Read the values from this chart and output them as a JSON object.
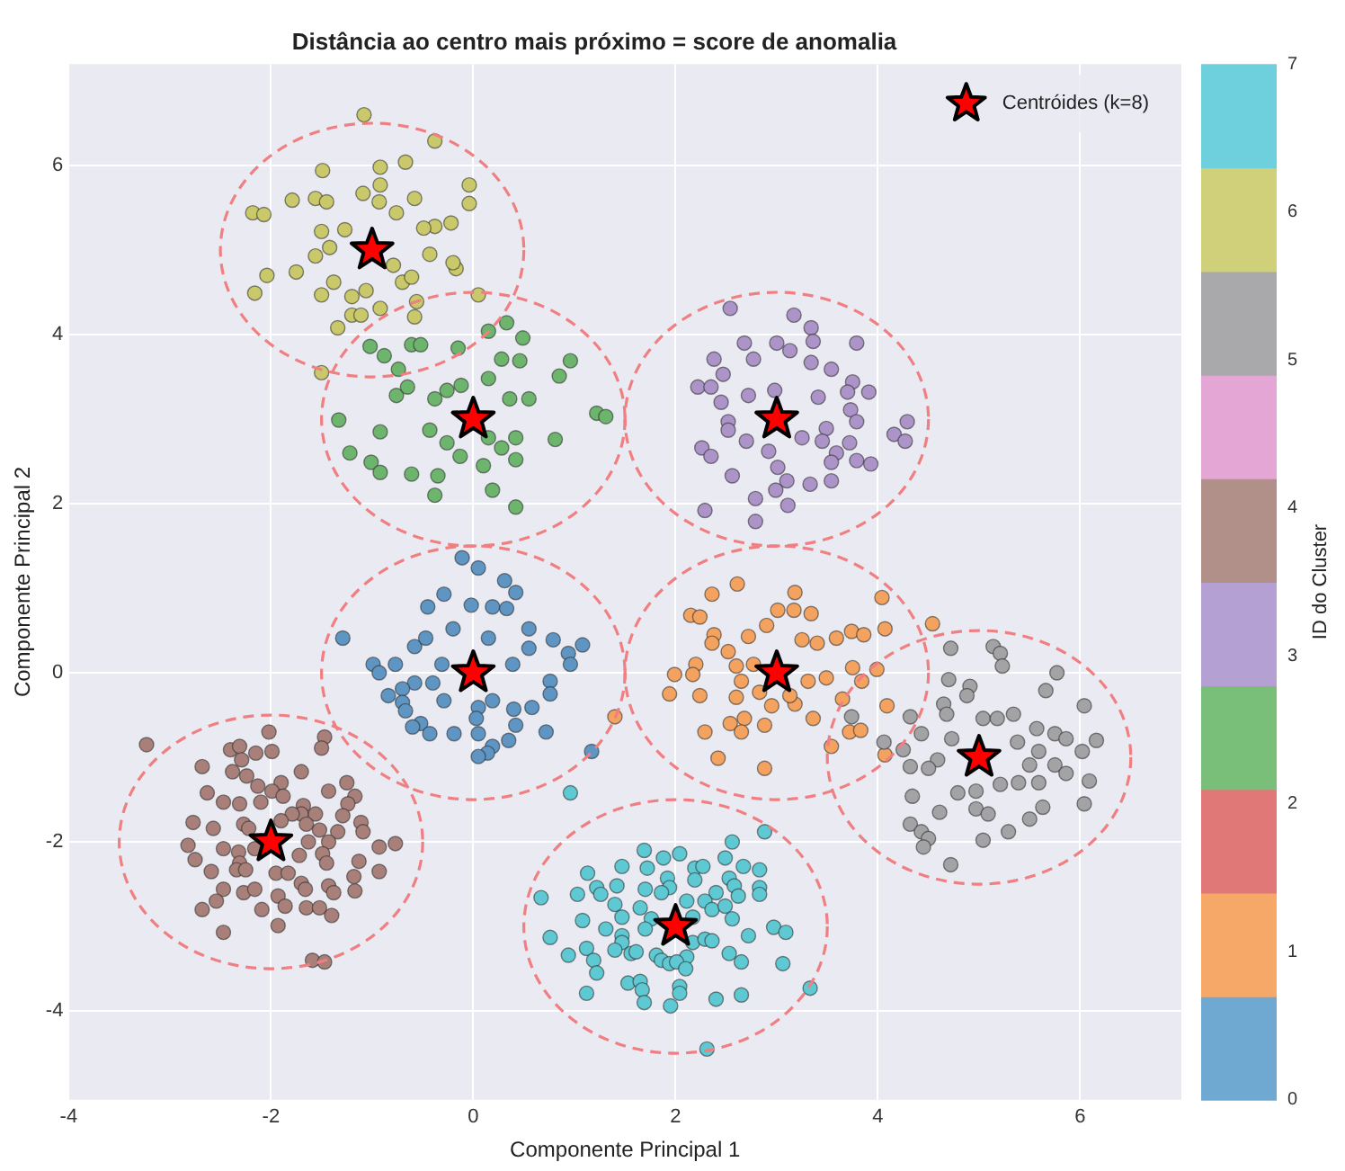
{
  "chart_data": {
    "type": "scatter",
    "title": "Distância ao centro mais próximo = score de anomalia",
    "xlabel": "Componente Principal 1",
    "ylabel": "Componente Principal 2",
    "clabel": "ID do Cluster",
    "clim": [
      0,
      7
    ],
    "cticks": [
      0,
      1,
      2,
      3,
      4,
      5,
      6,
      7
    ],
    "xlim": [
      -4,
      7
    ],
    "ylim": [
      -5.05,
      7.2
    ],
    "xticks": [
      -4,
      -2,
      0,
      2,
      4,
      6
    ],
    "yticks": [
      -4,
      -2,
      0,
      2,
      4,
      6
    ],
    "grid": true,
    "legend": "top right",
    "marker": "circle",
    "series": [
      {
        "color": "#5f95c2",
        "x": [
          -0.11,
          0.05,
          0.31,
          0.42,
          -0.29,
          -0.45,
          -0.02,
          0.19,
          0.33,
          0.55,
          0.79,
          1.08,
          0.94,
          0.96,
          -1.29,
          -0.99,
          -0.93,
          -0.77,
          -0.58,
          -0.47,
          -0.58,
          -0.7,
          -0.84,
          -0.7,
          -0.67,
          -0.4,
          -0.29,
          0.19,
          0.05,
          0.4,
          0.58,
          0.76,
          0.76,
          0.39,
          0.55,
          -0.52,
          -0.6,
          -0.43,
          -0.19,
          0.03,
          0.05,
          0.42,
          0.72,
          0.35,
          0.19,
          0.14,
          0.05,
          1.17,
          -0.2,
          0.15,
          -0.31
        ],
        "values": [
          1.36,
          1.24,
          1.09,
          0.95,
          0.93,
          0.78,
          0.8,
          0.78,
          0.76,
          0.52,
          0.39,
          0.33,
          0.23,
          0.1,
          0.41,
          0.1,
          0.0,
          0.1,
          0.31,
          0.41,
          -0.12,
          -0.19,
          -0.27,
          -0.35,
          -0.45,
          -0.12,
          -0.33,
          -0.33,
          -0.41,
          -0.43,
          -0.41,
          -0.1,
          -0.25,
          0.1,
          0.29,
          -0.6,
          -0.64,
          -0.72,
          -0.72,
          -0.54,
          -0.72,
          -0.62,
          -0.7,
          -0.8,
          -0.87,
          -0.95,
          -0.99,
          -0.93,
          0.52,
          0.41,
          0.1
        ]
      },
      {
        "color": "#f3a35f",
        "x": [
          2.61,
          2.36,
          3.18,
          3.17,
          3.34,
          3.01,
          2.15,
          2.24,
          4.04,
          4.54,
          4.07,
          2.38,
          2.72,
          2.9,
          3.25,
          3.4,
          3.59,
          3.74,
          3.86,
          2.36,
          2.52,
          2.2,
          1.99,
          2.17,
          1.94,
          2.24,
          2.6,
          2.77,
          2.65,
          2.6,
          2.83,
          3.31,
          3.49,
          3.75,
          3.99,
          3.65,
          3.84,
          4.09,
          3.36,
          3.18,
          3.13,
          2.95,
          2.68,
          2.54,
          2.29,
          2.65,
          2.88,
          3.72,
          3.83,
          3.54,
          2.42,
          2.88,
          4.07,
          1.4
        ],
        "values": [
          1.05,
          0.93,
          0.95,
          0.74,
          0.7,
          0.74,
          0.68,
          0.66,
          0.89,
          0.58,
          0.52,
          0.45,
          0.43,
          0.56,
          0.39,
          0.35,
          0.41,
          0.49,
          0.45,
          0.35,
          0.25,
          0.1,
          -0.02,
          -0.02,
          -0.25,
          -0.27,
          0.08,
          0.1,
          -0.1,
          -0.29,
          -0.23,
          -0.1,
          -0.06,
          0.06,
          0.04,
          -0.31,
          -0.1,
          -0.39,
          -0.54,
          -0.37,
          -0.27,
          -0.39,
          -0.54,
          -0.6,
          -0.7,
          -0.7,
          -0.62,
          -0.7,
          -0.68,
          -0.87,
          -1.01,
          -1.13,
          -0.97,
          -0.52
        ]
      },
      {
        "color": "#6db46d",
        "x": [
          0.33,
          0.49,
          0.15,
          -1.02,
          -0.61,
          -0.52,
          -0.15,
          -0.88,
          0.46,
          0.28,
          0.96,
          0.85,
          -0.74,
          -1.33,
          -1.22,
          -1.01,
          -0.92,
          -0.92,
          -0.76,
          -0.65,
          -0.38,
          -0.26,
          -0.12,
          0.15,
          0.36,
          0.55,
          0.81,
          1.22,
          1.31,
          -0.43,
          -0.26,
          0.15,
          0.42,
          0.28,
          -0.13,
          0.1,
          0.42,
          -0.61,
          -0.35,
          0.19,
          -0.38,
          0.42
        ],
        "values": [
          4.14,
          3.96,
          4.04,
          3.86,
          3.88,
          3.88,
          3.84,
          3.75,
          3.69,
          3.71,
          3.69,
          3.51,
          3.59,
          2.99,
          2.6,
          2.49,
          2.37,
          2.85,
          3.28,
          3.38,
          3.24,
          3.34,
          3.4,
          3.48,
          3.24,
          3.24,
          2.76,
          3.07,
          3.03,
          2.87,
          2.72,
          2.78,
          2.78,
          2.66,
          2.56,
          2.45,
          2.52,
          2.35,
          2.33,
          2.16,
          2.1,
          1.96
        ]
      },
      {
        "color": "#ac93c8",
        "x": [
          2.54,
          3.17,
          3.34,
          3.36,
          3.79,
          2.68,
          3.0,
          2.38,
          2.77,
          3.13,
          3.54,
          3.34,
          2.47,
          2.22,
          2.35,
          3.75,
          3.91,
          3.7,
          2.45,
          2.72,
          2.98,
          3.41,
          3.73,
          3.79,
          4.29,
          4.16,
          4.27,
          2.52,
          2.52,
          2.26,
          2.35,
          2.7,
          2.92,
          3.25,
          3.49,
          3.45,
          3.72,
          3.59,
          3.54,
          3.79,
          3.93,
          2.56,
          3.01,
          3.1,
          2.99,
          3.33,
          3.54,
          2.79,
          3.11,
          2.29,
          2.79
        ],
        "values": [
          4.31,
          4.23,
          4.08,
          3.92,
          3.9,
          3.9,
          3.9,
          3.71,
          3.71,
          3.81,
          3.59,
          3.67,
          3.53,
          3.38,
          3.38,
          3.44,
          3.32,
          3.32,
          3.2,
          3.28,
          3.34,
          3.26,
          3.11,
          2.97,
          2.97,
          2.82,
          2.74,
          2.97,
          2.87,
          2.66,
          2.56,
          2.74,
          2.62,
          2.78,
          2.89,
          2.74,
          2.72,
          2.6,
          2.49,
          2.51,
          2.47,
          2.33,
          2.43,
          2.27,
          2.16,
          2.23,
          2.27,
          2.06,
          1.98,
          1.92,
          1.79
        ]
      },
      {
        "color": "#a88079",
        "x": [
          -3.23,
          -2.02,
          -1.47,
          -1.5,
          -2.4,
          -2.31,
          -2.15,
          -1.99,
          -2.29,
          -2.68,
          -2.38,
          -2.24,
          -1.7,
          -1.9,
          -2.13,
          -1.25,
          -2.63,
          -1.99,
          -1.88,
          -1.43,
          -1.17,
          -1.24,
          -2.47,
          -2.31,
          -2.1,
          -1.68,
          -1.7,
          -1.79,
          -1.56,
          -1.29,
          -2.77,
          -2.57,
          -2.27,
          -2.22,
          -1.9,
          -1.65,
          -1.52,
          -1.34,
          -1.11,
          -1.09,
          -1.63,
          -1.43,
          -2.82,
          -2.47,
          -2.32,
          -2.16,
          -0.93,
          -0.77,
          -2.75,
          -2.31,
          -1.72,
          -1.49,
          -1.45,
          -1.13,
          -2.59,
          -2.34,
          -2.25,
          -1.95,
          -1.83,
          -1.18,
          -0.93,
          -1.7,
          -1.66,
          -2.47,
          -2.27,
          -2.16,
          -1.43,
          -1.38,
          -1.17,
          -1.93,
          -2.54,
          -2.68,
          -2.09,
          -1.86,
          -1.65,
          -1.52,
          -1.4,
          -2.47,
          -1.93,
          -1.59,
          -1.47
        ],
        "values": [
          -0.85,
          -0.7,
          -0.76,
          -0.89,
          -0.91,
          -0.87,
          -0.95,
          -0.93,
          -1.03,
          -1.11,
          -1.17,
          -1.22,
          -1.17,
          -1.3,
          -1.34,
          -1.3,
          -1.42,
          -1.4,
          -1.46,
          -1.4,
          -1.46,
          -1.55,
          -1.53,
          -1.55,
          -1.53,
          -1.57,
          -1.67,
          -1.67,
          -1.67,
          -1.69,
          -1.77,
          -1.84,
          -1.79,
          -1.84,
          -1.75,
          -1.79,
          -1.86,
          -1.88,
          -1.77,
          -1.88,
          -2.0,
          -2.0,
          -2.04,
          -2.08,
          -2.12,
          -2.08,
          -2.06,
          -2.02,
          -2.21,
          -2.25,
          -2.16,
          -2.14,
          -2.25,
          -2.23,
          -2.35,
          -2.33,
          -2.33,
          -2.37,
          -2.37,
          -2.41,
          -2.35,
          -2.49,
          -2.56,
          -2.56,
          -2.6,
          -2.56,
          -2.52,
          -2.6,
          -2.58,
          -2.64,
          -2.7,
          -2.8,
          -2.8,
          -2.76,
          -2.78,
          -2.78,
          -2.87,
          -3.07,
          -2.99,
          -3.4,
          -3.42
        ]
      },
      {
        "color": "#a3a3a6",
        "x": [
          4.72,
          5.14,
          5.21,
          5.23,
          5.77,
          4.7,
          4.91,
          4.88,
          5.66,
          6.04,
          4.65,
          4.68,
          4.32,
          3.74,
          5.04,
          5.18,
          5.34,
          5.57,
          5.75,
          5.86,
          6.16,
          4.43,
          4.25,
          4.06,
          4.73,
          5.38,
          5.59,
          6.02,
          4.59,
          4.32,
          4.5,
          5.5,
          5.75,
          5.86,
          6.09,
          5.21,
          5.39,
          5.59,
          4.79,
          4.97,
          4.34,
          4.97,
          5.09,
          4.61,
          5.63,
          6.04,
          5.5,
          4.32,
          4.43,
          4.5,
          5.29,
          4.45,
          5.04,
          4.72
        ],
        "values": [
          0.29,
          0.31,
          0.23,
          0.08,
          0.0,
          -0.08,
          -0.16,
          -0.27,
          -0.21,
          -0.39,
          -0.37,
          -0.49,
          -0.52,
          -0.52,
          -0.54,
          -0.54,
          -0.49,
          -0.66,
          -0.72,
          -0.78,
          -0.8,
          -0.72,
          -0.91,
          -0.82,
          -0.78,
          -0.82,
          -0.93,
          -0.93,
          -1.03,
          -1.11,
          -1.13,
          -1.09,
          -1.09,
          -1.19,
          -1.28,
          -1.32,
          -1.3,
          -1.3,
          -1.42,
          -1.4,
          -1.46,
          -1.61,
          -1.67,
          -1.65,
          -1.59,
          -1.55,
          -1.73,
          -1.79,
          -1.88,
          -1.96,
          -1.88,
          -2.06,
          -1.98,
          -2.27
        ]
      },
      {
        "color": "#c9c86a",
        "x": [
          -1.08,
          -0.38,
          -2.18,
          -2.07,
          -1.79,
          -1.49,
          -0.92,
          -0.67,
          -0.04,
          -0.04,
          -0.22,
          -0.38,
          -2.04,
          -2.16,
          -1.75,
          -1.5,
          -1.34,
          -1.2,
          -1.11,
          -0.58,
          -0.56,
          -0.92,
          0.05,
          -0.17,
          -0.2,
          -0.43,
          -1.56,
          -1.45,
          -1.5,
          -1.27,
          -1.42,
          -1.56,
          -0.79,
          -0.93,
          -0.76,
          -0.49,
          -0.7,
          -1.38,
          -1.06,
          -1.2,
          -1.5,
          -0.92,
          -1.09,
          -0.58,
          -0.61
        ],
        "values": [
          6.6,
          6.29,
          5.44,
          5.42,
          5.59,
          5.94,
          5.98,
          6.04,
          5.77,
          5.55,
          5.32,
          5.28,
          4.7,
          4.49,
          4.74,
          4.47,
          4.08,
          4.23,
          4.23,
          4.21,
          4.39,
          4.31,
          4.47,
          4.78,
          4.85,
          4.95,
          5.61,
          5.57,
          5.22,
          5.24,
          5.03,
          4.93,
          4.82,
          5.57,
          5.44,
          5.26,
          4.62,
          4.62,
          4.52,
          4.45,
          3.55,
          5.77,
          5.67,
          5.61,
          4.68
        ]
      },
      {
        "color": "#5ec8d3",
        "x": [
          0.96,
          2.88,
          1.69,
          2.04,
          1.88,
          2.56,
          2.49,
          1.13,
          1.47,
          1.72,
          2.19,
          2.27,
          2.67,
          2.83,
          2.19,
          2.53,
          1.92,
          1.22,
          1.42,
          1.7,
          1.94,
          2.58,
          2.83,
          0.67,
          1.03,
          1.26,
          1.86,
          2.4,
          2.62,
          2.83,
          1.4,
          1.65,
          2.11,
          2.29,
          2.36,
          2.49,
          1.47,
          1.76,
          1.08,
          2.17,
          2.56,
          0.76,
          1.31,
          1.47,
          1.7,
          2.17,
          2.29,
          2.36,
          2.72,
          2.97,
          3.09,
          1.47,
          1.12,
          1.4,
          1.56,
          1.61,
          0.94,
          1.81,
          1.86,
          1.94,
          2.11,
          2.01,
          2.1,
          1.19,
          1.22,
          2.53,
          2.65,
          3.06,
          1.53,
          1.65,
          1.67,
          2.04,
          2.04,
          1.12,
          1.69,
          1.95,
          2.4,
          2.65,
          3.33,
          2.31
        ],
        "values": [
          -1.42,
          -1.88,
          -2.1,
          -2.14,
          -2.19,
          -2.0,
          -2.19,
          -2.37,
          -2.29,
          -2.31,
          -2.31,
          -2.29,
          -2.29,
          -2.33,
          -2.45,
          -2.43,
          -2.43,
          -2.54,
          -2.52,
          -2.56,
          -2.54,
          -2.52,
          -2.54,
          -2.66,
          -2.62,
          -2.62,
          -2.6,
          -2.6,
          -2.64,
          -2.62,
          -2.74,
          -2.78,
          -2.7,
          -2.7,
          -2.8,
          -2.76,
          -2.89,
          -2.91,
          -2.93,
          -2.89,
          -2.91,
          -3.13,
          -3.03,
          -3.11,
          -3.03,
          -3.19,
          -3.15,
          -3.17,
          -3.11,
          -3.01,
          -3.07,
          -3.19,
          -3.26,
          -3.28,
          -3.32,
          -3.3,
          -3.34,
          -3.34,
          -3.4,
          -3.44,
          -3.36,
          -3.42,
          -3.5,
          -3.4,
          -3.55,
          -3.32,
          -3.42,
          -3.44,
          -3.67,
          -3.65,
          -3.75,
          -3.71,
          -3.79,
          -3.79,
          -3.9,
          -3.94,
          -3.86,
          -3.81,
          -3.73,
          -4.45
        ]
      },
      {
        "name": "Centróides (k=8)",
        "color": "#ff0000",
        "marker": "star",
        "x": [
          0,
          3,
          0,
          3,
          -2,
          5,
          -1,
          2
        ],
        "values": [
          0,
          0,
          3,
          3,
          -2,
          -1,
          5,
          -3
        ]
      }
    ]
  }
}
